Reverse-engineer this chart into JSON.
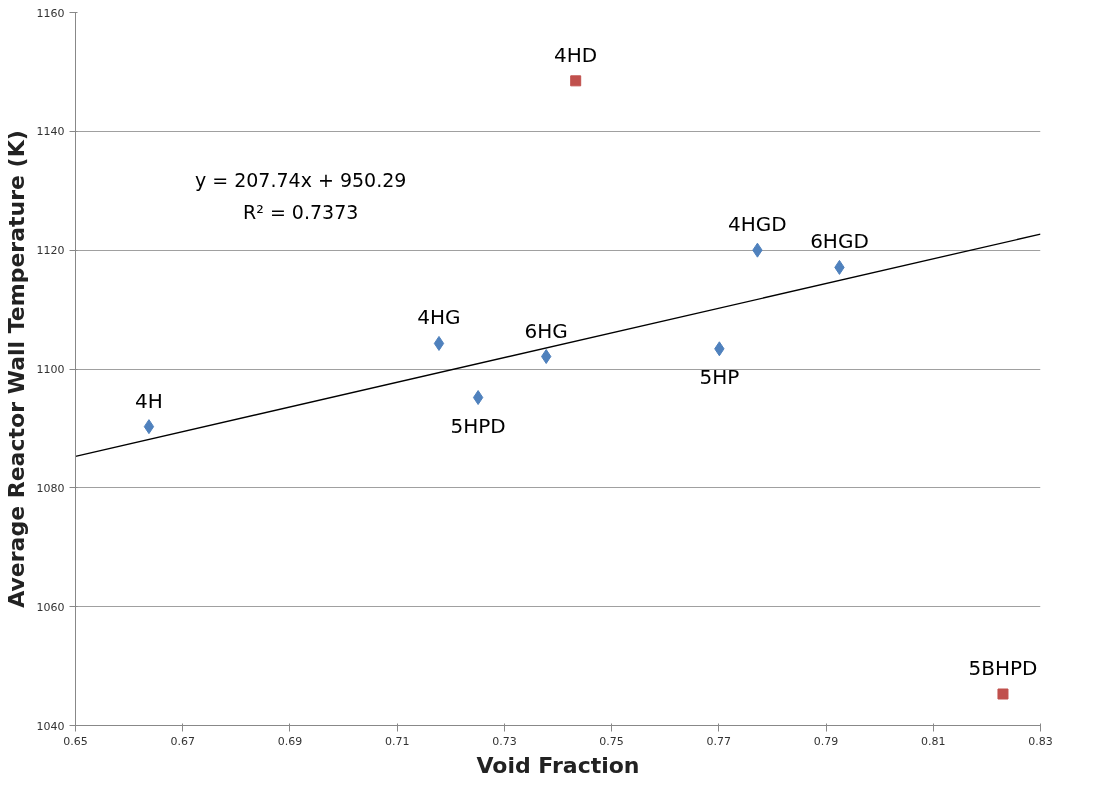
{
  "chart_data": {
    "type": "scatter",
    "xlabel": "Void Fraction",
    "ylabel": "Average Reactor Wall Temperature (K)",
    "xlim": [
      0.65,
      0.83
    ],
    "xticks": [
      0.65,
      0.67,
      0.69,
      0.71,
      0.73,
      0.75,
      0.77,
      0.79,
      0.81,
      0.83
    ],
    "ylim": [
      1040,
      1160
    ],
    "yticks": [
      1040,
      1060,
      1080,
      1100,
      1120,
      1140,
      1160
    ],
    "grid": "y",
    "series": [
      {
        "marker": "diamond",
        "color": "#4f81bd",
        "x": [
          0.6637,
          0.7178,
          0.7251,
          0.7378,
          0.7701,
          0.7772,
          0.7925
        ],
        "values": [
          1090.3,
          1104.3,
          1095.2,
          1102.1,
          1103.4,
          1120.0,
          1117.1
        ]
      },
      {
        "marker": "square",
        "color": "#c0504d",
        "x": [
          0.7433,
          0.823
        ],
        "values": [
          1148.5,
          1045.3
        ]
      },
      {
        "type": "line",
        "color": "#000000",
        "x": [
          0.65,
          0.83
        ],
        "values": [
          1085.3,
          1122.7
        ]
      }
    ],
    "annotations": [
      {
        "text": "4H",
        "x": 0.6637,
        "y": 1090.3
      },
      {
        "text": "4HG",
        "x": 0.7178,
        "y": 1104.3
      },
      {
        "text": "5HPD",
        "x": 0.7251,
        "y": 1095.2
      },
      {
        "text": "6HG",
        "x": 0.7378,
        "y": 1102.1
      },
      {
        "text": "5HP",
        "x": 0.7701,
        "y": 1103.4
      },
      {
        "text": "4HGD",
        "x": 0.7772,
        "y": 1120.0
      },
      {
        "text": "6HGD",
        "x": 0.7925,
        "y": 1117.1
      },
      {
        "text": "4HD",
        "x": 0.7433,
        "y": 1148.5
      },
      {
        "text": "5BHPD",
        "x": 0.823,
        "y": 1045.3
      },
      "y = 207.74x + 950.29",
      "R² = 0.7373"
    ]
  }
}
